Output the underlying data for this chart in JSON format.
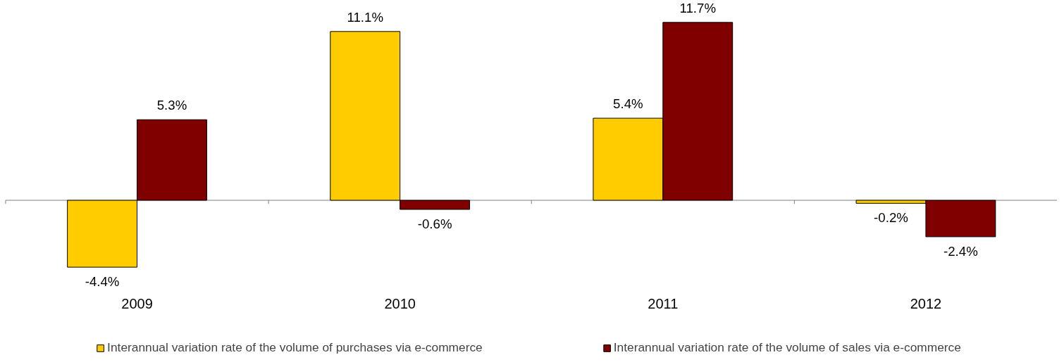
{
  "chart_data": {
    "type": "bar",
    "categories": [
      "2009",
      "2010",
      "2011",
      "2012"
    ],
    "series": [
      {
        "name": "Interannual variation rate of the volume of purchases via e-commerce",
        "color": "#ffcc00",
        "values": [
          -4.4,
          11.1,
          5.4,
          -0.2
        ],
        "value_labels": [
          "-4.4%",
          "11.1%",
          "5.4%",
          "-0.2%"
        ]
      },
      {
        "name": "Interannual variation rate of the volume of sales via e-commerce",
        "color": "#800000",
        "values": [
          5.3,
          -0.6,
          11.7,
          -2.4
        ],
        "value_labels": [
          "5.3%",
          "-0.6%",
          "11.7%",
          "-2.4%"
        ]
      }
    ],
    "legend": "bottom"
  }
}
